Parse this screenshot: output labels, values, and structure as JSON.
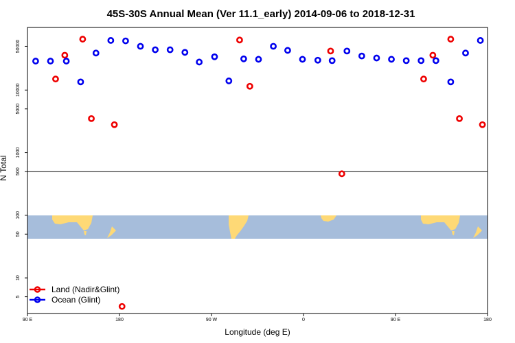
{
  "chart_data": {
    "type": "scatter",
    "title": "45S-30S Annual Mean (Ver 11.1_early)   2014-09-06 to 2018-12-31",
    "xlabel": "Longitude (deg E)",
    "ylabel": "N Total",
    "y_scale": "log",
    "xlim": [
      90,
      540
    ],
    "ylim": [
      2.7,
      100000
    ],
    "x_ticks": [
      {
        "value": 90,
        "label": "90 E"
      },
      {
        "value": 180,
        "label": "180"
      },
      {
        "value": 270,
        "label": "90 W"
      },
      {
        "value": 360,
        "label": "0"
      },
      {
        "value": 450,
        "label": "90 E"
      },
      {
        "value": 540,
        "label": "180"
      }
    ],
    "y_ticks": [
      {
        "value": 5,
        "label": "5"
      },
      {
        "value": 10,
        "label": "10"
      },
      {
        "value": 50,
        "label": "50"
      },
      {
        "value": 100,
        "label": "100"
      },
      {
        "value": 500,
        "label": "500"
      },
      {
        "value": 1000,
        "label": "1000"
      },
      {
        "value": 5000,
        "label": "5000"
      },
      {
        "value": 10000,
        "label": "10000"
      },
      {
        "value": 50000,
        "label": "50000"
      }
    ],
    "reference_line": 500,
    "legend": {
      "position": "bottom-left"
    },
    "series": [
      {
        "name": "Land (Nadir&Glint)",
        "color": "#ee0000",
        "points": [
          {
            "x": 117.5,
            "y": 15000
          },
          {
            "x": 126.5,
            "y": 36000
          },
          {
            "x": 144,
            "y": 65000
          },
          {
            "x": 152.5,
            "y": 3500
          },
          {
            "x": 175,
            "y": 2800
          },
          {
            "x": 182.5,
            "y": 3.5
          },
          {
            "x": 297.5,
            "y": 63000
          },
          {
            "x": 307.5,
            "y": 11500
          },
          {
            "x": 386.5,
            "y": 42000
          },
          {
            "x": 397.5,
            "y": 460
          },
          {
            "x": 477.5,
            "y": 15000
          },
          {
            "x": 486.5,
            "y": 36000
          },
          {
            "x": 504,
            "y": 65000
          },
          {
            "x": 512.5,
            "y": 3500
          },
          {
            "x": 535,
            "y": 2800
          }
        ]
      },
      {
        "name": "Ocean (Glint)",
        "color": "#0000ee",
        "points": [
          {
            "x": 98,
            "y": 29000
          },
          {
            "x": 112.5,
            "y": 29000
          },
          {
            "x": 128,
            "y": 29000
          },
          {
            "x": 142,
            "y": 13500
          },
          {
            "x": 157,
            "y": 39000
          },
          {
            "x": 171.5,
            "y": 62000
          },
          {
            "x": 186,
            "y": 61000
          },
          {
            "x": 200.5,
            "y": 50000
          },
          {
            "x": 215,
            "y": 44000
          },
          {
            "x": 229.5,
            "y": 44000
          },
          {
            "x": 244,
            "y": 40000
          },
          {
            "x": 258,
            "y": 28000
          },
          {
            "x": 273,
            "y": 34000
          },
          {
            "x": 287,
            "y": 14000
          },
          {
            "x": 301.5,
            "y": 31500
          },
          {
            "x": 316,
            "y": 31000
          },
          {
            "x": 330.5,
            "y": 50000
          },
          {
            "x": 344.5,
            "y": 43000
          },
          {
            "x": 359,
            "y": 31000
          },
          {
            "x": 374,
            "y": 30000
          },
          {
            "x": 388,
            "y": 29500
          },
          {
            "x": 402.5,
            "y": 42000
          },
          {
            "x": 417,
            "y": 35000
          },
          {
            "x": 431.5,
            "y": 32500
          },
          {
            "x": 446,
            "y": 31000
          },
          {
            "x": 460.5,
            "y": 29500
          },
          {
            "x": 475,
            "y": 29500
          },
          {
            "x": 489.5,
            "y": 29500
          },
          {
            "x": 504,
            "y": 13500
          },
          {
            "x": 518.5,
            "y": 39000
          },
          {
            "x": 533,
            "y": 62000
          }
        ]
      }
    ]
  },
  "map_colors": {
    "ocean": "#a6bddb",
    "land": "#fed976"
  }
}
